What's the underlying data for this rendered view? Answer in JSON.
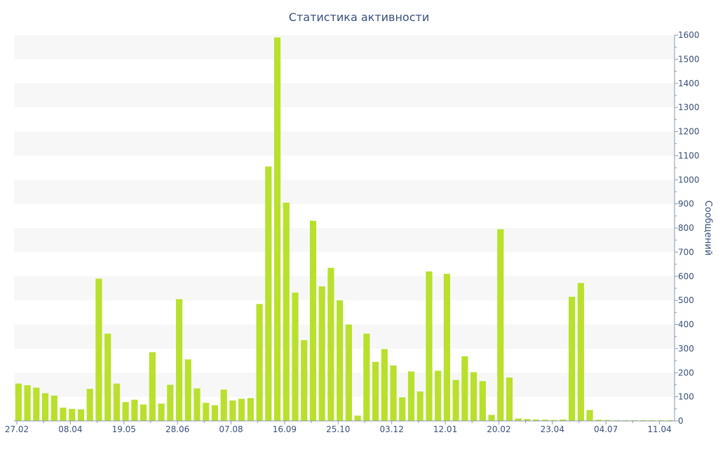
{
  "chart_data": {
    "type": "bar",
    "title": "Статистика активности",
    "ylabel": "Сообщений",
    "xlabel": "",
    "ylim": [
      0,
      1600
    ],
    "yticks": [
      0,
      100,
      200,
      300,
      400,
      500,
      600,
      700,
      800,
      900,
      1000,
      1100,
      1200,
      1300,
      1400,
      1500,
      1600
    ],
    "y_axis_position": "right",
    "grid": "alternating horizontal bands",
    "legend": "none",
    "colors": {
      "bar": "#b8e02d",
      "band": "#f7f7f7",
      "axis_text": "#3a4f7a",
      "axis_line": "#8a96b0"
    },
    "xticks": [
      {
        "label": "27.02",
        "index": 0
      },
      {
        "label": "08.04",
        "index": 6
      },
      {
        "label": "19.05",
        "index": 12
      },
      {
        "label": "28.06",
        "index": 18
      },
      {
        "label": "07.08",
        "index": 24
      },
      {
        "label": "16.09",
        "index": 30
      },
      {
        "label": "25.10",
        "index": 36
      },
      {
        "label": "03.12",
        "index": 42
      },
      {
        "label": "12.01",
        "index": 48
      },
      {
        "label": "20.02",
        "index": 54
      },
      {
        "label": "23.04",
        "index": 60
      },
      {
        "label": "04.07",
        "index": 66
      },
      {
        "label": "11.04",
        "index": 72
      }
    ],
    "values": [
      155,
      148,
      138,
      115,
      105,
      55,
      50,
      48,
      133,
      590,
      362,
      155,
      78,
      88,
      68,
      285,
      72,
      150,
      505,
      255,
      135,
      75,
      65,
      130,
      85,
      92,
      95,
      485,
      1055,
      1590,
      905,
      532,
      335,
      830,
      558,
      635,
      500,
      400,
      22,
      362,
      245,
      298,
      230,
      98,
      205,
      122,
      620,
      208,
      610,
      170,
      268,
      202,
      165,
      25,
      795,
      180,
      10,
      8,
      6,
      5,
      4,
      6,
      515,
      572,
      45,
      5,
      4,
      3,
      3,
      3,
      3,
      3,
      3,
      3
    ]
  }
}
